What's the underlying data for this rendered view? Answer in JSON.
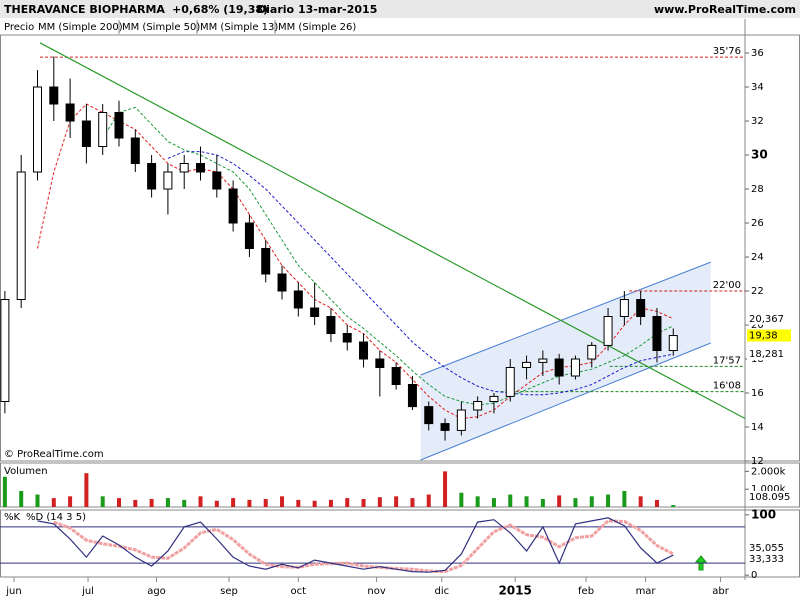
{
  "header": {
    "title": "THERAVANCE BIOPHARMA",
    "change": "+0,68% (19,38)",
    "period": "Diario",
    "date": "13-mar-2015",
    "site": "www.ProRealTime.com"
  },
  "copyright": "© ProRealTime.com",
  "chart_data": [
    {
      "type": "candlestick",
      "label": "Precio",
      "mm200_label": "MM (Simple 200)",
      "mm200_color": "#000000",
      "up_color": "#ffffff",
      "down_color": "#000000",
      "xlim": [
        -0.3,
        45.4
      ],
      "ylim": [
        12,
        37.06
      ],
      "yticks": [
        12,
        14,
        16,
        18,
        20,
        22,
        24,
        26,
        28,
        30,
        32,
        34,
        36
      ],
      "xticks": [
        {
          "value": 0.56,
          "label": "jun"
        },
        {
          "value": 5.1,
          "label": "jul"
        },
        {
          "value": 9.3,
          "label": "ago"
        },
        {
          "value": 13.75,
          "label": "sep"
        },
        {
          "value": 18.0,
          "label": "oct"
        },
        {
          "value": 22.8,
          "label": "nov"
        },
        {
          "value": 26.8,
          "label": "dic"
        },
        {
          "value": 31.3,
          "label": "2015"
        },
        {
          "value": 35.65,
          "label": "feb"
        },
        {
          "value": 39.3,
          "label": "mar"
        },
        {
          "value": 43.9,
          "label": "abr"
        }
      ],
      "open": [
        15.5,
        21.5,
        29,
        34,
        33,
        32,
        30.5,
        32.5,
        31,
        29.5,
        28,
        29,
        29.5,
        29,
        28,
        26,
        24.5,
        23,
        22,
        21,
        20.5,
        19.5,
        19,
        18,
        17.5,
        16.5,
        15.2,
        14.2,
        13.8,
        15,
        15.5,
        15.8,
        17.5,
        17.8,
        18,
        17,
        18,
        18.8,
        20.5,
        21.5,
        20.5,
        18.5
      ],
      "high": [
        22,
        30,
        35,
        35.8,
        34.5,
        33,
        33,
        33.2,
        31.5,
        30,
        29.5,
        30,
        30.5,
        30,
        28.5,
        26.5,
        25,
        23.5,
        22.5,
        22.5,
        21,
        20,
        19.5,
        18.5,
        17.8,
        17,
        15.5,
        14.5,
        15.5,
        15.8,
        16,
        18,
        18.2,
        18.5,
        18.3,
        18.2,
        19,
        21,
        22,
        22,
        21,
        19.8
      ],
      "low": [
        14.8,
        21,
        28.5,
        32,
        31,
        29.5,
        30,
        30.5,
        29,
        27.5,
        26.5,
        28,
        28.5,
        27.5,
        25.5,
        24,
        22.5,
        21.5,
        20.5,
        20,
        19,
        18.5,
        17.5,
        15.8,
        16.2,
        15,
        13.8,
        13.2,
        13.5,
        14.5,
        14.8,
        15.5,
        16.8,
        17,
        16.5,
        16.8,
        17.5,
        18.5,
        20,
        20,
        17.8,
        18.2
      ],
      "close": [
        21.5,
        29,
        34,
        33,
        32,
        30.5,
        32.5,
        31,
        29.5,
        28,
        29,
        29.5,
        29,
        28,
        26,
        24.5,
        23,
        22,
        21,
        20.5,
        19.5,
        19,
        18,
        17.5,
        16.5,
        15.2,
        14.2,
        13.8,
        15,
        15.5,
        15.8,
        17.5,
        17.8,
        18,
        17,
        18,
        18.8,
        20.5,
        21.5,
        20.5,
        18.5,
        19.38
      ],
      "last_label": "19,38",
      "last_color": "#ffff00",
      "series": [
        {
          "name": "MM (Simple 50)",
          "color": "#1f1fc8",
          "last_label": "18,281",
          "values": [
            null,
            null,
            null,
            null,
            null,
            null,
            null,
            null,
            null,
            null,
            29.8,
            30.2,
            30.2,
            30,
            29.5,
            28.8,
            28,
            27,
            26,
            25,
            24,
            23,
            22,
            21,
            20,
            19,
            18.2,
            17.5,
            16.9,
            16.4,
            16.1,
            16,
            15.9,
            15.9,
            16,
            16.2,
            16.5,
            17,
            17.5,
            17.9,
            18.1,
            18.281
          ]
        },
        {
          "name": "MM (Simple 13)",
          "color": "#e02020",
          "last_label": "20,367",
          "values": [
            null,
            null,
            24.5,
            29,
            32,
            33,
            32.5,
            32,
            31.5,
            30.5,
            29.5,
            29,
            29.2,
            29,
            28,
            26.5,
            25,
            23.5,
            22.5,
            21.5,
            21,
            20,
            19.5,
            18.5,
            17.8,
            16.8,
            15.8,
            15,
            14.5,
            14.6,
            15,
            15.8,
            16.5,
            17.2,
            17.5,
            17.6,
            17.8,
            18.8,
            20,
            21,
            20.8,
            20.367
          ]
        },
        {
          "name": "MM (Simple 26)",
          "color": "#1a9a3a",
          "values": [
            null,
            null,
            null,
            null,
            null,
            null,
            31,
            32.5,
            32.8,
            31.8,
            30.8,
            30.3,
            30,
            29.5,
            29,
            28,
            26.5,
            25,
            23.5,
            22.5,
            21.5,
            20.5,
            19.8,
            19,
            18.2,
            17.3,
            16.5,
            15.8,
            15.5,
            15.3,
            15.4,
            15.8,
            16.2,
            16.6,
            17,
            17.2,
            17.4,
            17.8,
            18.2,
            18.8,
            19.5,
            19.95
          ]
        }
      ],
      "levels": [
        {
          "value": 35.76,
          "label": "35'76",
          "color": "#d02020",
          "start": 2.15
        },
        {
          "value": 22.0,
          "label": "22'00",
          "color": "#d02020",
          "start": 38.3
        },
        {
          "value": 17.57,
          "label": "17'57",
          "color": "#1a8a1a",
          "start": 37.1
        },
        {
          "value": 16.08,
          "label": "16'08",
          "color": "#1a8a1a",
          "start": 30.4
        }
      ],
      "trendlines": [
        {
          "x": [
            2.15,
            45.4
          ],
          "y": [
            36.6,
            14.5
          ],
          "color": "#2a9a2a"
        }
      ],
      "channel": {
        "color": "#4a7fd4",
        "fill": "#dde6f8",
        "upper": {
          "x": [
            25.5,
            43.3
          ],
          "y": [
            17.06,
            23.7
          ]
        },
        "lower": {
          "x": [
            25.5,
            43.3
          ],
          "y": [
            12.06,
            18.94
          ]
        }
      }
    },
    {
      "type": "bar",
      "label": "Volumen",
      "up_color": "#1a9a1a",
      "down_color": "#d02020",
      "ylim": [
        0,
        2470
      ],
      "yticks": [
        {
          "value": 2000,
          "label": "2.000k"
        },
        {
          "value": 1000,
          "label": "1.000k"
        }
      ],
      "values": [
        1700,
        900,
        700,
        500,
        600,
        1900,
        600,
        500,
        400,
        450,
        500,
        400,
        600,
        350,
        500,
        400,
        450,
        600,
        400,
        350,
        400,
        500,
        450,
        550,
        600,
        500,
        700,
        2000,
        800,
        600,
        500,
        700,
        600,
        450,
        650,
        500,
        600,
        700,
        900,
        600,
        400,
        108.095
      ],
      "last_label": "108.095"
    },
    {
      "type": "line",
      "ylim": [
        -3,
        108
      ],
      "yticks": [
        0,
        100
      ],
      "levels": [
        20,
        80
      ],
      "level_color": "#303080",
      "series": [
        {
          "name": "%D (14 3 5)",
          "color": "#f0a0a0",
          "last_label": "35,055",
          "values": [
            null,
            null,
            null,
            88,
            78,
            58,
            52,
            48,
            42,
            30,
            28,
            45,
            70,
            76,
            59,
            35,
            18,
            14,
            13,
            18,
            19,
            20,
            15,
            13,
            11,
            10,
            7,
            6,
            16,
            44,
            72,
            83,
            67,
            63,
            47,
            62,
            65,
            90,
            89,
            74,
            49,
            35.055
          ]
        },
        {
          "name": "%K",
          "color": "#303080",
          "last_label": "33,333",
          "values": [
            null,
            null,
            90,
            85,
            60,
            30,
            65,
            50,
            30,
            15,
            40,
            80,
            88,
            60,
            30,
            15,
            10,
            18,
            12,
            25,
            20,
            15,
            10,
            14,
            10,
            6,
            5,
            8,
            35,
            88,
            92,
            70,
            40,
            80,
            20,
            85,
            90,
            95,
            82,
            45,
            20,
            33.333
          ]
        }
      ]
    }
  ]
}
